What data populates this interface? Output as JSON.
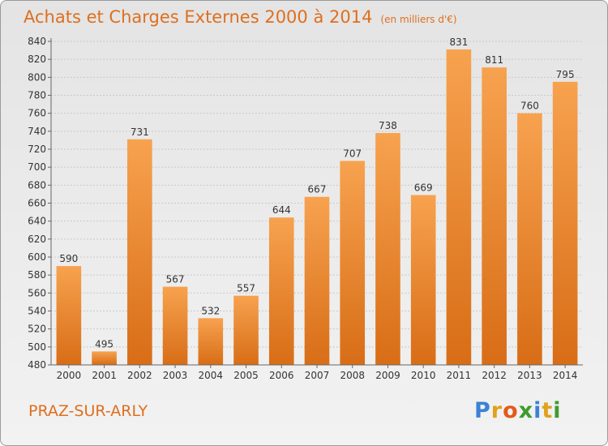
{
  "chart_data": {
    "type": "bar",
    "title": "Achats et Charges Externes 2000 à 2014",
    "subtitle": "(en milliers d'€)",
    "categories": [
      "2000",
      "2001",
      "2002",
      "2003",
      "2004",
      "2005",
      "2006",
      "2007",
      "2008",
      "2009",
      "2010",
      "2011",
      "2012",
      "2013",
      "2014"
    ],
    "values": [
      590,
      495,
      731,
      567,
      532,
      557,
      644,
      667,
      707,
      738,
      669,
      831,
      811,
      760,
      795
    ],
    "ylim": [
      480,
      840
    ],
    "ytick_step": 20,
    "grid": true,
    "xlabel": "",
    "ylabel": ""
  },
  "footer": {
    "commune": "PRAZ-SUR-ARLY"
  },
  "logo": {
    "letters": [
      "P",
      "r",
      "o",
      "x",
      "i",
      "t",
      "i"
    ],
    "colors": [
      "#3b82d6",
      "#e0a21b",
      "#e35a1c",
      "#3f9b2e",
      "#3b82d6",
      "#e0a21b",
      "#3f9b2e"
    ]
  },
  "colors": {
    "bar_top": "#f7a24f",
    "bar_bottom": "#d86d16",
    "title": "#de6f1f"
  }
}
